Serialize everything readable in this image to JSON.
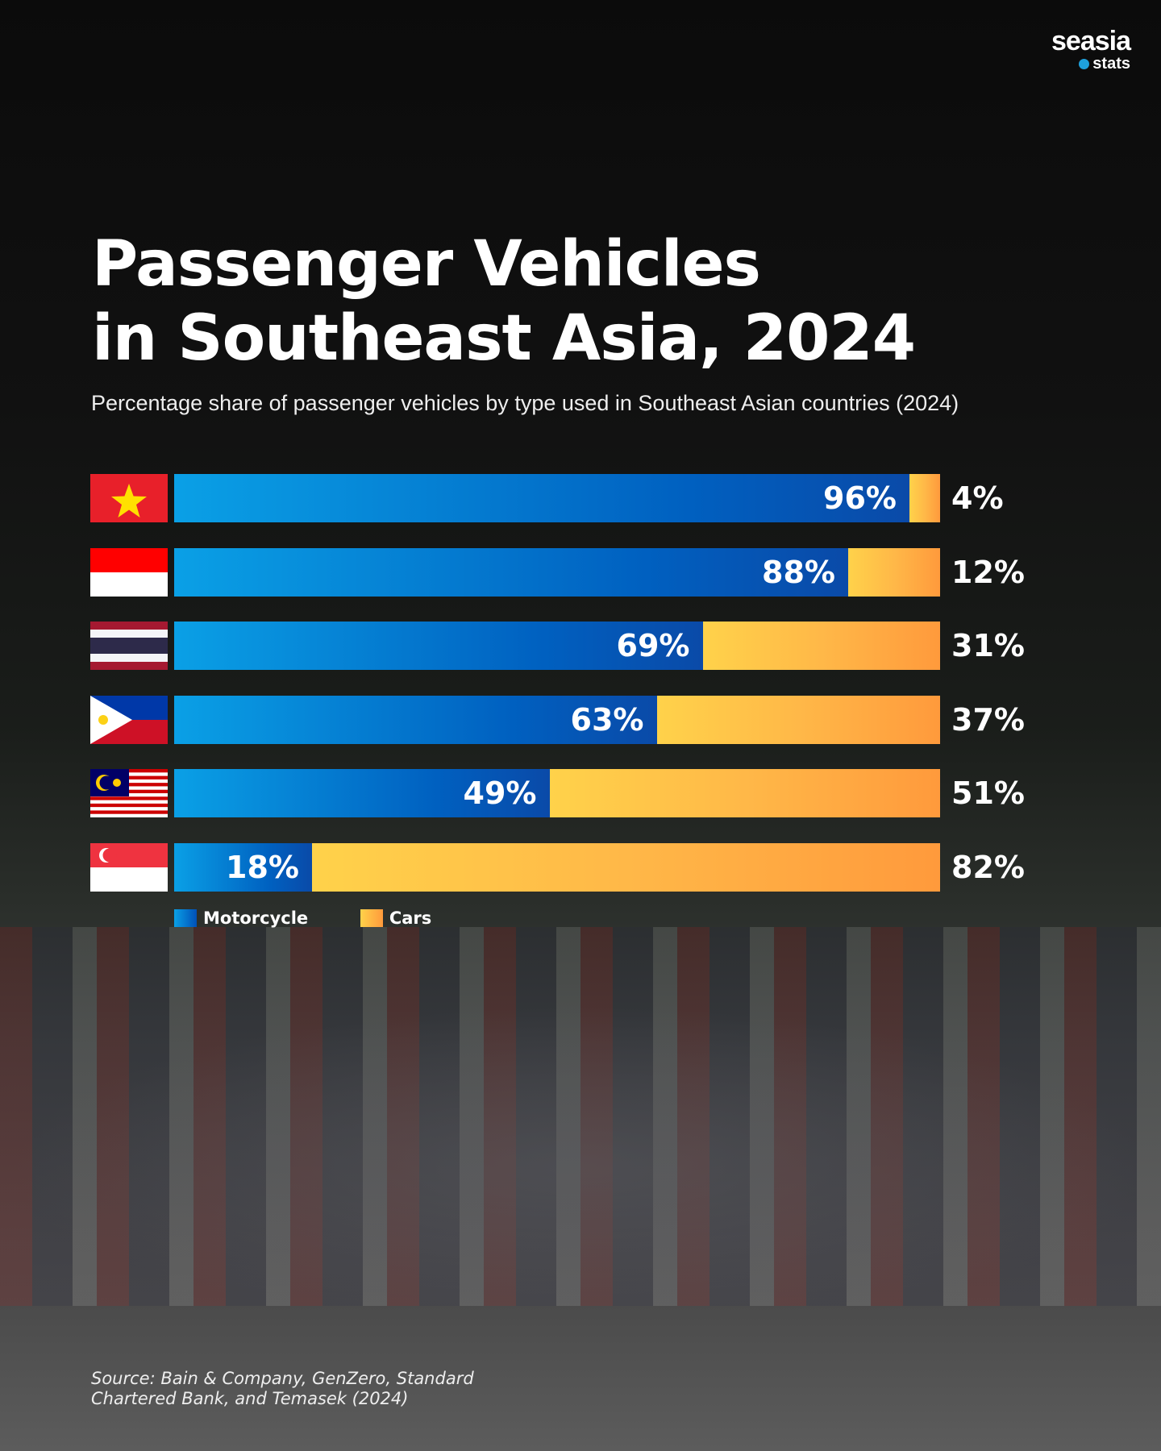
{
  "logo": {
    "brand": "seasia",
    "sub": "stats"
  },
  "title_line1": "Passenger Vehicles",
  "title_line2": "in Southeast Asia, 2024",
  "subtitle": "Percentage share of passenger vehicles by type used in Southeast Asian countries (2024)",
  "chart_data": {
    "type": "bar",
    "stacked": true,
    "orientation": "horizontal",
    "categories": [
      "Vietnam",
      "Indonesia",
      "Thailand",
      "Philippines",
      "Malaysia",
      "Singapore"
    ],
    "category_labels_shown_as": "flags",
    "series": [
      {
        "name": "Motorcycle",
        "color": "#0a6fd0",
        "values": [
          96,
          88,
          69,
          63,
          49,
          18
        ],
        "labels": [
          "96%",
          "88%",
          "69%",
          "63%",
          "49%",
          "18%"
        ]
      },
      {
        "name": "Cars",
        "color": "#ffb848",
        "values": [
          4,
          12,
          31,
          37,
          51,
          82
        ],
        "labels": [
          "4%",
          "12%",
          "31%",
          "37%",
          "51%",
          "82%"
        ]
      }
    ],
    "xlim": [
      0,
      100
    ],
    "legend": "bottom-left",
    "grid": false
  },
  "source": [
    "Source: Bain & Company, GenZero, Standard",
    "Chartered Bank, and Temasek (2024)"
  ]
}
